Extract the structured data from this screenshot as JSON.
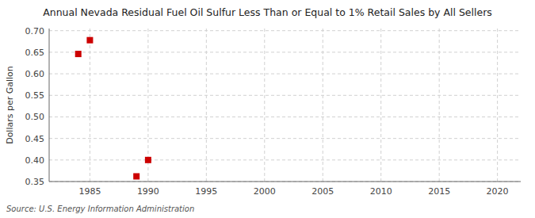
{
  "chart_data": {
    "type": "scatter",
    "title": "Annual Nevada Residual Fuel Oil Sulfur Less Than or Equal to 1% Retail Sales by All Sellers",
    "y_label": "Dollars per Gallon",
    "source": "Source: U.S. Energy Information Administration",
    "x": [
      1984,
      1985,
      1989,
      1990
    ],
    "values": [
      0.646,
      0.678,
      0.362,
      0.4
    ],
    "color": "#cc0000",
    "marker": "square",
    "xlim": [
      1981.5,
      2022
    ],
    "ylim": [
      0.35,
      0.705
    ],
    "xticks": [
      1985,
      1990,
      1995,
      2000,
      2005,
      2010,
      2015,
      2020
    ],
    "yticks": [
      0.35,
      {
        "value": 0.4,
        "label": "0.40"
      },
      0.45,
      {
        "value": 0.5,
        "label": "0.50"
      },
      0.55,
      {
        "value": 0.6,
        "label": "0.60"
      },
      0.65,
      {
        "value": 0.7,
        "label": "0.70"
      }
    ],
    "grid": true
  }
}
